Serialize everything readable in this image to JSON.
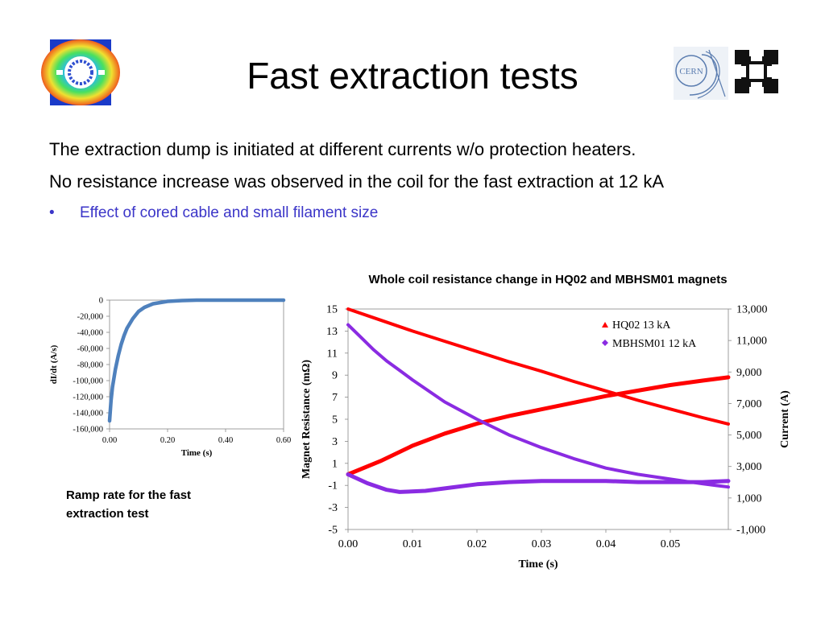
{
  "slide": {
    "title": "Fast extraction tests",
    "paragraph1": "The extraction dump is initiated at different currents w/o protection heaters.",
    "paragraph2": "No resistance increase was observed in the coil for the fast extraction at 12 kA",
    "bullet_marker": "•",
    "bullet1": "Effect of cored cable and small filament size",
    "small_chart_caption": "Ramp rate for the fast extraction test",
    "big_chart_title": "Whole coil resistance change in HQ02 and MBHSM01 magnets",
    "logo_cern_text": "CERN"
  },
  "colors": {
    "bullet_text": "#3b35c8",
    "ramp_line": "#4f81bd",
    "hq02": "#ff0000",
    "mbhsm01": "#8a2be2"
  },
  "chart_data": [
    {
      "type": "line",
      "xlabel": "Time (s)",
      "ylabel": "dI/dt (A/s)",
      "xlim": [
        0.0,
        0.6
      ],
      "ylim": [
        -160000,
        0
      ],
      "x_ticks": [
        "0.00",
        "0.20",
        "0.40",
        "0.60"
      ],
      "y_ticks": [
        "0",
        "-20,000",
        "-40,000",
        "-60,000",
        "-80,000",
        "-100,000",
        "-120,000",
        "-140,000",
        "-160,000"
      ],
      "series": [
        {
          "x": [
            0.0,
            0.005,
            0.01,
            0.02,
            0.03,
            0.04,
            0.05,
            0.06,
            0.08,
            0.1,
            0.12,
            0.15,
            0.2,
            0.25,
            0.3,
            0.4,
            0.5,
            0.6
          ],
          "y": [
            -150000,
            -125000,
            -108000,
            -86000,
            -69000,
            -55000,
            -44000,
            -35000,
            -23000,
            -14000,
            -9000,
            -4500,
            -1500,
            -500,
            0,
            0,
            0,
            0
          ]
        }
      ]
    },
    {
      "type": "line",
      "xlabel": "Time (s)",
      "ylabel": "Magnet Resistance (mΩ)",
      "y2label": "Current (A)",
      "xlim": [
        0.0,
        0.059
      ],
      "ylim": [
        -5,
        15
      ],
      "y2lim": [
        -1000,
        13000
      ],
      "x_ticks": [
        "0.00",
        "0.01",
        "0.02",
        "0.03",
        "0.04",
        "0.05"
      ],
      "y_ticks": [
        "15",
        "13",
        "11",
        "9",
        "7",
        "5",
        "3",
        "1",
        "-1",
        "-3",
        "-5"
      ],
      "y2_ticks": [
        "13,000",
        "11,000",
        "9,000",
        "7,000",
        "5,000",
        "3,000",
        "1,000",
        "-1,000"
      ],
      "legend_position": "top-right",
      "series": [
        {
          "name": "HQ02 13 kA",
          "resistance": {
            "x": [
              0.0,
              0.005,
              0.01,
              0.015,
              0.02,
              0.025,
              0.03,
              0.035,
              0.04,
              0.045,
              0.05,
              0.055,
              0.059
            ],
            "y": [
              0.0,
              1.2,
              2.6,
              3.7,
              4.6,
              5.3,
              5.9,
              6.5,
              7.1,
              7.6,
              8.1,
              8.5,
              8.8
            ]
          },
          "current": {
            "x": [
              0.0,
              0.005,
              0.01,
              0.015,
              0.02,
              0.025,
              0.03,
              0.035,
              0.04,
              0.045,
              0.05,
              0.055,
              0.059
            ],
            "y": [
              13000,
              12300,
              11600,
              10950,
              10300,
              9650,
              9050,
              8400,
              7800,
              7200,
              6650,
              6100,
              5700
            ]
          }
        },
        {
          "name": "MBHSM01 12 kA",
          "resistance": {
            "x": [
              0.0,
              0.003,
              0.006,
              0.008,
              0.012,
              0.016,
              0.02,
              0.025,
              0.03,
              0.035,
              0.04,
              0.045,
              0.05,
              0.055,
              0.059
            ],
            "y": [
              0.0,
              -0.8,
              -1.4,
              -1.6,
              -1.5,
              -1.2,
              -0.9,
              -0.7,
              -0.6,
              -0.6,
              -0.6,
              -0.7,
              -0.7,
              -0.7,
              -0.6
            ]
          },
          "current": {
            "x": [
              0.0,
              0.002,
              0.004,
              0.006,
              0.008,
              0.01,
              0.015,
              0.02,
              0.025,
              0.03,
              0.035,
              0.04,
              0.045,
              0.05,
              0.055,
              0.059
            ],
            "y": [
              12000,
              11200,
              10400,
              9700,
              9100,
              8500,
              7100,
              6000,
              5000,
              4200,
              3500,
              2900,
              2500,
              2200,
              1900,
              1700
            ]
          }
        }
      ]
    }
  ]
}
